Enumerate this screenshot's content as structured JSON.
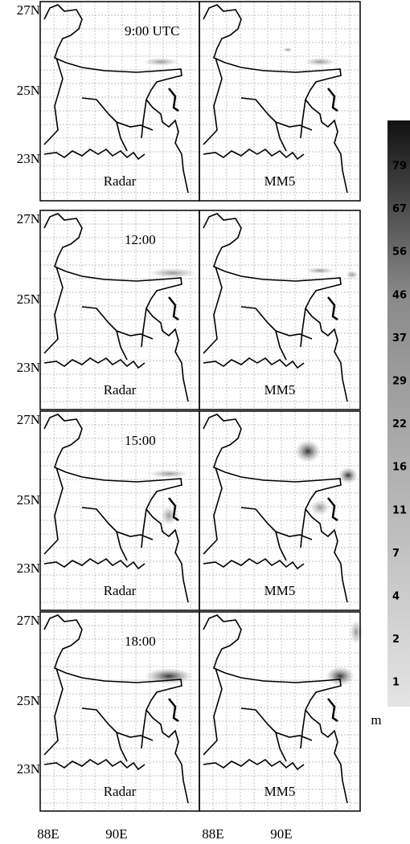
{
  "rows": [
    {
      "time": "9:00 UTC",
      "left": "Radar",
      "right": "MM5",
      "lat": [
        "27N",
        "25N",
        "23N"
      ]
    },
    {
      "time": "12:00",
      "left": "Radar",
      "right": "MM5",
      "lat": [
        "27N",
        "25N",
        "23N"
      ]
    },
    {
      "time": "15:00",
      "left": "Radar",
      "right": "MM5",
      "lat": [
        "27N",
        "25N",
        "23N"
      ]
    },
    {
      "time": "18:00",
      "left": "Radar",
      "right": "MM5",
      "lat": [
        "27N",
        "25N",
        "23N"
      ]
    }
  ],
  "lon": [
    "88E",
    "90E",
    "88E",
    "90E"
  ],
  "colorbar": {
    "labels": [
      "79",
      "67",
      "56",
      "46",
      "37",
      "29",
      "22",
      "16",
      "11",
      "7",
      "4",
      "2",
      "1"
    ],
    "unit": "m"
  }
}
